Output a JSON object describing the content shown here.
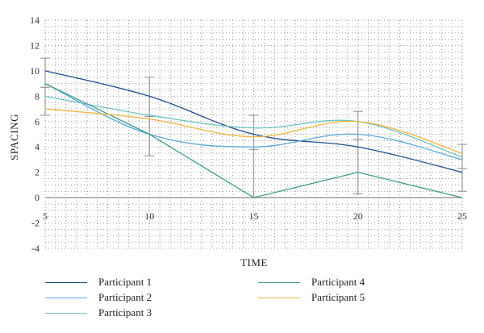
{
  "chart_data": {
    "type": "line",
    "xlabel": "TIME",
    "ylabel": "SPACING",
    "x": [
      5,
      10,
      15,
      20,
      25
    ],
    "xlim": [
      5,
      25
    ],
    "ylim": [
      -4,
      14
    ],
    "xticks": [
      "5",
      "10",
      "15",
      "20",
      "25"
    ],
    "yticks": [
      "-4",
      "-2",
      "0",
      "2",
      "4",
      "6",
      "8",
      "10",
      "12",
      "14"
    ],
    "grid": "dotted",
    "legend_position": "bottom",
    "series": [
      {
        "name": "Participant 1",
        "color": "#1f4e8c",
        "values": [
          10,
          8,
          5,
          4,
          2
        ]
      },
      {
        "name": "Participant 2",
        "color": "#5aa9dc",
        "values": [
          9,
          5,
          4,
          5,
          3
        ]
      },
      {
        "name": "Participant 3",
        "color": "#6cc4c0",
        "values": [
          8,
          6.5,
          5.5,
          6,
          3.2
        ]
      },
      {
        "name": "Participant 4",
        "color": "#3f9e8a",
        "values": [
          9,
          5,
          0,
          2,
          0
        ]
      },
      {
        "name": "Participant 5",
        "color": "#f2b63c",
        "values": [
          7,
          6.2,
          4.8,
          6,
          3.5
        ]
      }
    ],
    "error_bars": [
      {
        "x": 5,
        "center": 8.7,
        "low": 6.5,
        "high": 11
      },
      {
        "x": 10,
        "center": 6.4,
        "low": 3.3,
        "high": 9.5
      },
      {
        "x": 15,
        "center": 3.8,
        "low": 0,
        "high": 6.5
      },
      {
        "x": 20,
        "center": 4.6,
        "low": 0.3,
        "high": 6.8
      },
      {
        "x": 25,
        "center": 2.3,
        "low": 0.5,
        "high": 4.2
      }
    ]
  }
}
